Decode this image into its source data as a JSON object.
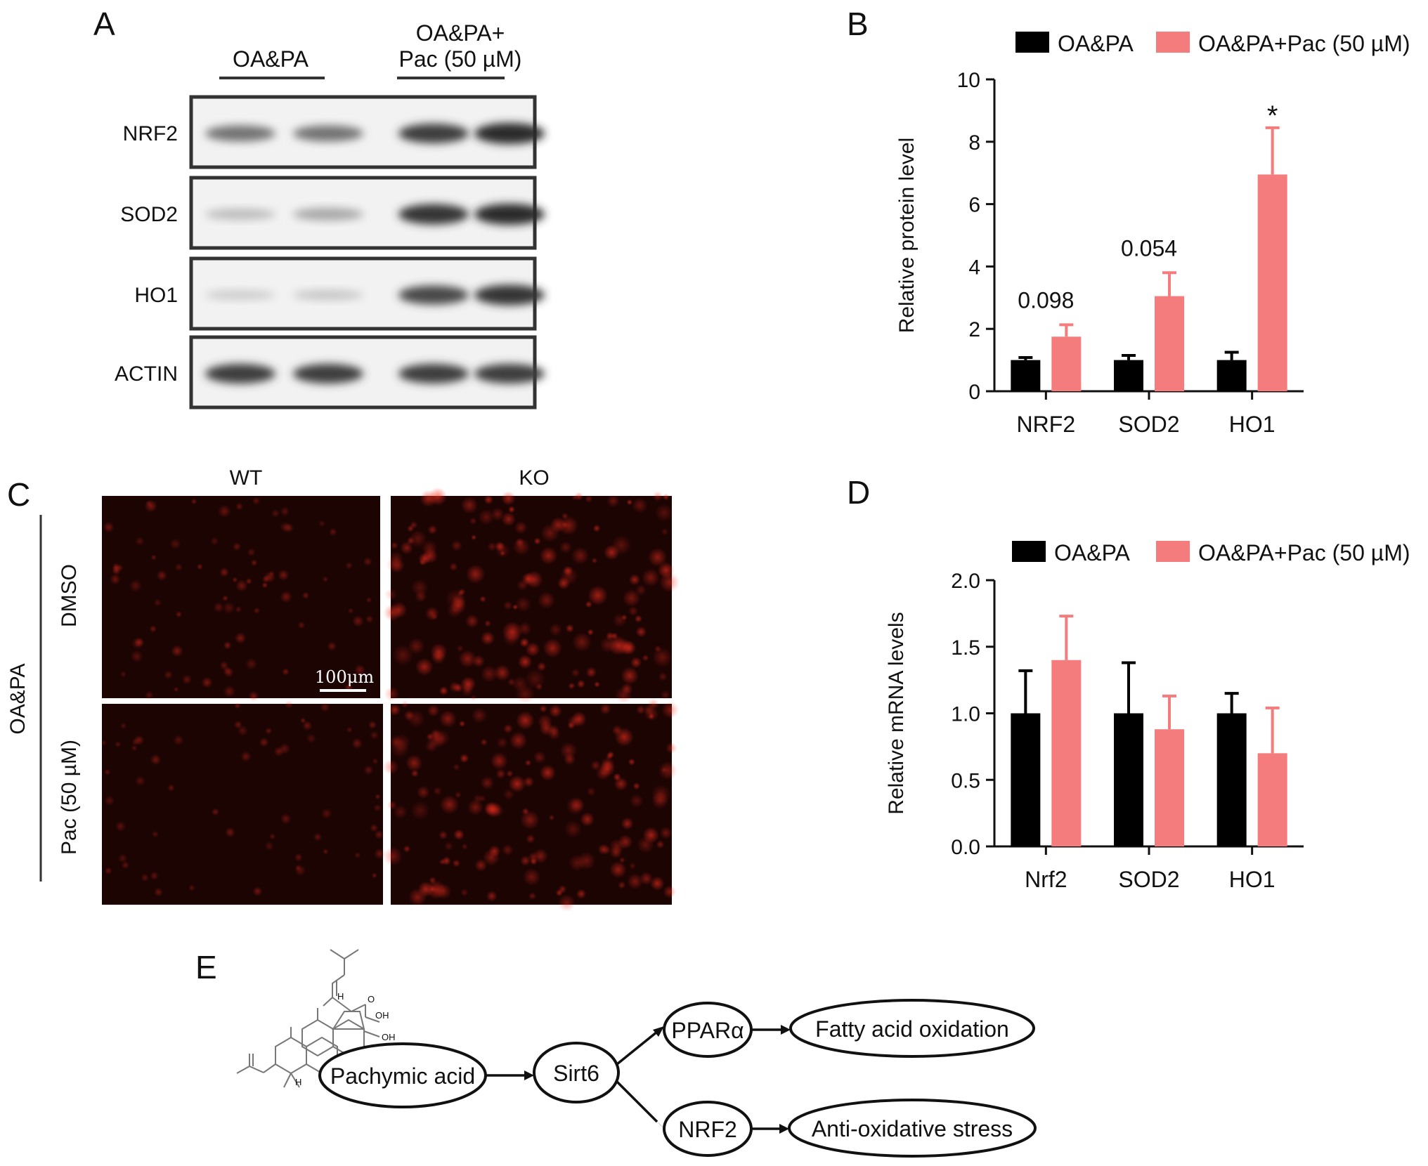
{
  "panels": {
    "A": {
      "label": "A",
      "groups": [
        "OA&PA",
        "OA&PA+",
        "Pac (50 µM)"
      ],
      "blots": [
        {
          "name": "NRF2",
          "bands": [
            0.55,
            0.55,
            0.8,
            0.9
          ]
        },
        {
          "name": "SOD2",
          "bands": [
            0.2,
            0.3,
            0.85,
            0.9
          ]
        },
        {
          "name": "HO1",
          "bands": [
            0.12,
            0.15,
            0.75,
            0.85
          ]
        },
        {
          "name": "ACTIN",
          "bands": [
            0.8,
            0.8,
            0.8,
            0.8
          ]
        }
      ]
    },
    "B": {
      "label": "B"
    },
    "C": {
      "label": "C",
      "col_labels": [
        "WT",
        "KO"
      ],
      "row_labels": [
        "DMSO",
        "Pac (50 µM)"
      ],
      "side_label": "OA&PA",
      "scale_bar": "100μm"
    },
    "D": {
      "label": "D"
    },
    "E": {
      "label": "E",
      "nodes": {
        "pachymic": "Pachymic acid",
        "sirt6": "Sirt6",
        "ppar": "PPARα",
        "nrf2": "NRF2",
        "fatty": "Fatty acid oxidation",
        "anti": "Anti-oxidative stress"
      },
      "molecule_labels": [
        "OH",
        "O",
        "OH",
        "H",
        "H",
        "H"
      ]
    }
  },
  "chart_data": [
    {
      "panel": "B",
      "type": "bar",
      "categories": [
        "NRF2",
        "SOD2",
        "HO1"
      ],
      "series": [
        {
          "name": "OA&PA",
          "color": "#000000",
          "values": [
            1.0,
            1.0,
            1.0
          ],
          "errors": [
            0.08,
            0.15,
            0.25
          ]
        },
        {
          "name": "OA&PA+Pac (50 µM)",
          "color": "#f47c7c",
          "values": [
            1.75,
            3.05,
            6.95
          ],
          "errors": [
            0.38,
            0.75,
            1.5
          ]
        }
      ],
      "annotations": [
        {
          "category": "NRF2",
          "series": 1,
          "text": "0.098"
        },
        {
          "category": "SOD2",
          "series": 1,
          "text": "0.054"
        },
        {
          "category": "HO1",
          "series": 1,
          "text": "*"
        }
      ],
      "ylabel": "Relative protein level",
      "xlabel": "",
      "title": "",
      "ylim": [
        0,
        10
      ],
      "yticks": [
        0,
        2,
        4,
        6,
        8,
        10
      ],
      "legend": "top"
    },
    {
      "panel": "D",
      "type": "bar",
      "categories": [
        "Nrf2",
        "SOD2",
        "HO1"
      ],
      "series": [
        {
          "name": "OA&PA",
          "color": "#000000",
          "values": [
            1.0,
            1.0,
            1.0
          ],
          "errors": [
            0.32,
            0.38,
            0.15
          ]
        },
        {
          "name": "OA&PA+Pac (50 µM)",
          "color": "#f47c7c",
          "values": [
            1.4,
            0.88,
            0.7
          ],
          "errors": [
            0.33,
            0.25,
            0.34
          ]
        }
      ],
      "annotations": [],
      "ylabel": "Relative mRNA levels",
      "xlabel": "",
      "title": "",
      "ylim": [
        0,
        2.0
      ],
      "yticks": [
        "0.0",
        "0.5",
        "1.0",
        "1.5",
        "2.0"
      ],
      "legend": "top"
    }
  ]
}
